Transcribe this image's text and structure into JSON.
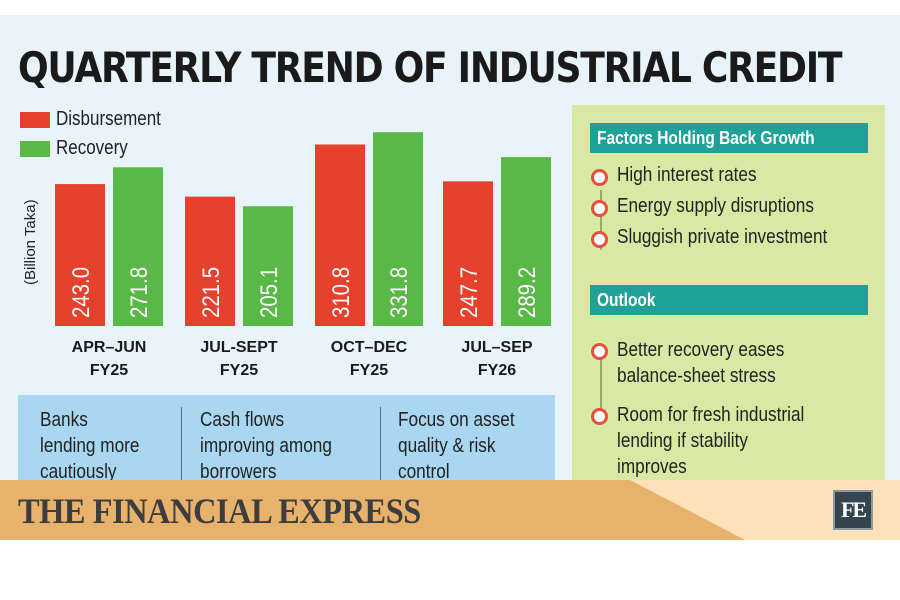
{
  "chart_data": {
    "type": "bar",
    "title": "QUARTERLY TREND OF INDUSTRIAL CREDIT",
    "ylabel": "(Billion Taka)",
    "categories": [
      [
        "APR–JUN",
        "FY25"
      ],
      [
        "JUL-SEPT",
        "FY25"
      ],
      [
        "OCT–DEC",
        "FY25"
      ],
      [
        "JUL–SEP",
        "FY26"
      ]
    ],
    "series": [
      {
        "name": "Disbursement",
        "color": "#e5412d",
        "values": [
          243.0,
          221.5,
          310.8,
          247.7
        ],
        "labels": [
          "243.0",
          "221.5",
          "310.8",
          "247.7"
        ]
      },
      {
        "name": "Recovery",
        "color": "#58b947",
        "values": [
          271.8,
          205.1,
          331.8,
          289.2
        ],
        "labels": [
          "271.8",
          "205.1",
          "331.8",
          "289.2"
        ]
      }
    ],
    "ylim": [
      0,
      340
    ],
    "grid": false,
    "legend": "top-left"
  },
  "panel": {
    "factors_title": "Factors Holding Back Growth",
    "factors": [
      "High interest rates",
      "Energy supply disruptions",
      "Sluggish private investment"
    ],
    "outlook_title": "Outlook",
    "outlook": [
      [
        "Better recovery eases",
        "balance-sheet stress"
      ],
      [
        "Room for fresh industrial",
        "lending if stability",
        "improves"
      ]
    ]
  },
  "notes": [
    [
      "Banks",
      "lending more",
      "cautiously"
    ],
    [
      "Cash flows",
      "improving among",
      "borrowers"
    ],
    [
      "Focus on asset",
      "quality & risk",
      "control"
    ]
  ],
  "footer": {
    "brand": "THE FINANCIAL EXPRESS",
    "logo": "FE"
  }
}
